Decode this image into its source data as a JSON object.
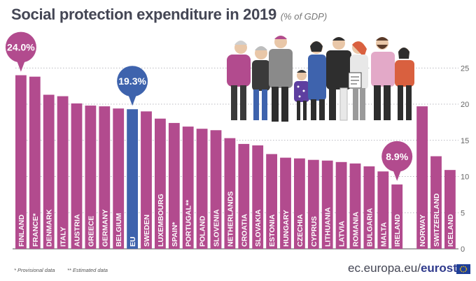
{
  "header": {
    "title": "Social protection expenditure in 2019",
    "unit": "(% of GDP)"
  },
  "footnotes": {
    "provisional": "* Provisional data",
    "estimated": "** Estimated data"
  },
  "source": {
    "domain": "ec.europa.eu/",
    "brand": "eurostat"
  },
  "colors": {
    "bar": "#b24b8e",
    "eu_bar": "#3e63ad",
    "grid": "#a1a1ab",
    "callout": "#b24b8e",
    "eu_callout": "#3e63ad"
  },
  "icons": [
    "family-illustration-icon",
    "eu-flag-icon"
  ],
  "chart_data": {
    "type": "bar",
    "title": "Social protection expenditure in 2019",
    "ylabel": "(% of GDP)",
    "ylim": [
      0,
      25
    ],
    "yticks": [
      5,
      10,
      15,
      20,
      25
    ],
    "grid": true,
    "categories": [
      "FINLAND",
      "FRANCE*",
      "DENMARK",
      "ITALY",
      "AUSTRIA",
      "GREECE",
      "GERMANY",
      "BELGIUM",
      "EU",
      "SWEDEN",
      "LUXEMBOURG",
      "SPAIN*",
      "PORTUGAL**",
      "POLAND",
      "SLOVENIA",
      "NETHERLANDS",
      "CROATIA",
      "SLOVAKIA",
      "ESTONIA",
      "HUNGARY",
      "CZECHIA",
      "CYPRUS",
      "LITHUANIA",
      "LATVIA",
      "ROMANIA",
      "BULGARIA",
      "MALTA",
      "IRELAND",
      "NORWAY",
      "SWITZERLAND",
      "ICELAND"
    ],
    "values": [
      24.0,
      23.8,
      21.3,
      21.1,
      20.1,
      19.8,
      19.7,
      19.4,
      19.3,
      19.0,
      18.0,
      17.4,
      16.9,
      16.6,
      16.4,
      15.3,
      14.5,
      14.3,
      13.1,
      12.6,
      12.5,
      12.3,
      12.2,
      12.0,
      11.8,
      11.4,
      10.7,
      8.9,
      19.7,
      12.8,
      10.9
    ],
    "highlight": "EU",
    "callouts": [
      {
        "category": "FINLAND",
        "label": "24.0%"
      },
      {
        "category": "EU",
        "label": "19.3%"
      },
      {
        "category": "IRELAND",
        "label": "8.9%"
      }
    ]
  }
}
